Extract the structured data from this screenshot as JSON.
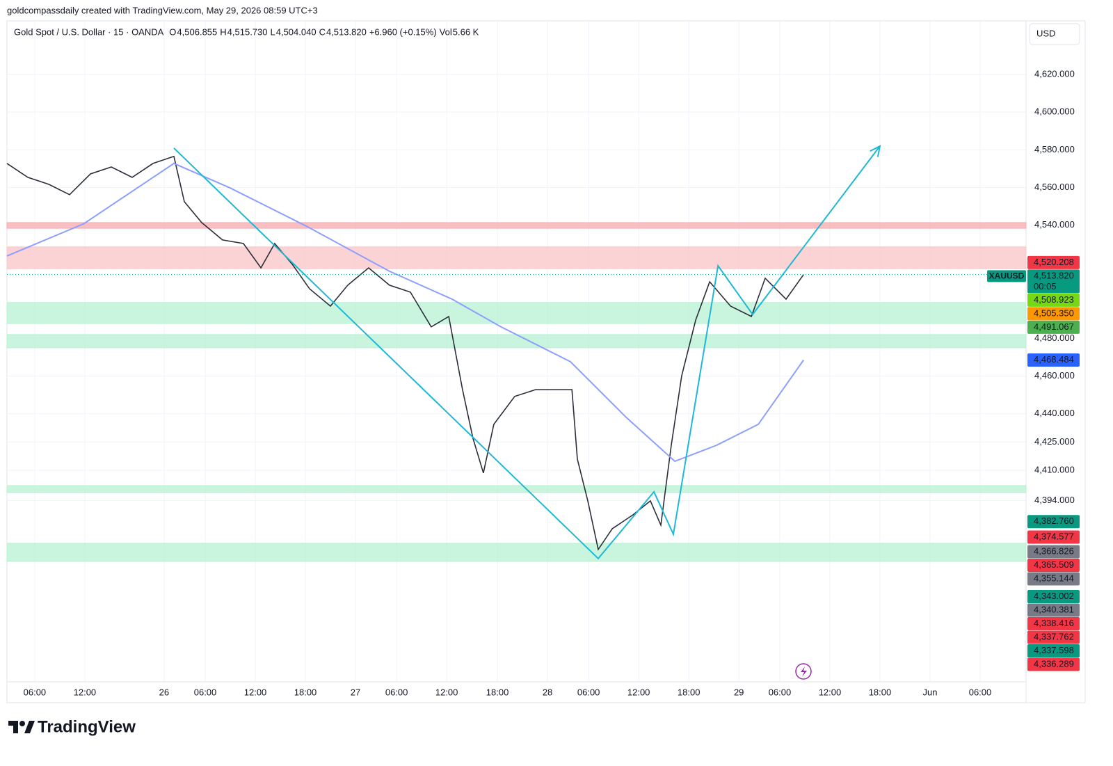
{
  "chart_data": {
    "type": "line",
    "attribution": "goldcompassdaily created with TradingView.com, May 29, 2026 08:59 UTC+3",
    "title": "Gold Spot / U.S. Dollar · 15 · OANDA",
    "ohlc": [
      {
        "name": "O",
        "text": "4,506.855"
      },
      {
        "name": "H",
        "text": "4,515.730"
      },
      {
        "name": "L",
        "text": "4,504.040"
      },
      {
        "name": "C",
        "text": "4,513.820"
      }
    ],
    "change": "+6.960 (+0.15%)",
    "volume": {
      "name": "Vol",
      "text": "5.66 K"
    },
    "currency": "USD",
    "brand": "TradingView",
    "ylim": [
      4301.5,
      4648.4
    ],
    "yticks": [
      {
        "value": 4620,
        "label": "4,620.000"
      },
      {
        "value": 4600,
        "label": "4,600.000"
      },
      {
        "value": 4580,
        "label": "4,580.000"
      },
      {
        "value": 4560,
        "label": "4,560.000"
      },
      {
        "value": 4540,
        "label": "4,540.000"
      },
      {
        "value": 4480,
        "label": "4,480.000"
      },
      {
        "value": 4460,
        "label": "4,460.000"
      },
      {
        "value": 4440,
        "label": "4,440.000"
      },
      {
        "value": 4425,
        "label": "4,425.000"
      },
      {
        "value": 4410,
        "label": "4,410.000"
      },
      {
        "value": 4394,
        "label": "4,394.000"
      }
    ],
    "xlim": [
      0,
      488.3
    ],
    "xticks": [
      {
        "value": 13.3,
        "label": "06:00"
      },
      {
        "value": 37.3,
        "label": "12:00"
      },
      {
        "value": 75.3,
        "label": "26"
      },
      {
        "value": 95,
        "label": "06:00"
      },
      {
        "value": 119,
        "label": "12:00"
      },
      {
        "value": 143,
        "label": "18:00"
      },
      {
        "value": 167,
        "label": "27"
      },
      {
        "value": 186.7,
        "label": "06:00"
      },
      {
        "value": 210.7,
        "label": "12:00"
      },
      {
        "value": 235,
        "label": "18:00"
      },
      {
        "value": 259,
        "label": "28"
      },
      {
        "value": 278.7,
        "label": "06:00"
      },
      {
        "value": 302.7,
        "label": "12:00"
      },
      {
        "value": 326.7,
        "label": "18:00"
      },
      {
        "value": 350.7,
        "label": "29"
      },
      {
        "value": 370.3,
        "label": "06:00"
      },
      {
        "value": 394.3,
        "label": "12:00"
      },
      {
        "value": 418.3,
        "label": "18:00"
      },
      {
        "value": 442.3,
        "label": "Jun"
      },
      {
        "value": 466.3,
        "label": "06:00"
      }
    ],
    "grid": true,
    "series": [
      {
        "color": "#2a2e39",
        "x": [
          0,
          10,
          20,
          30,
          40,
          50,
          60,
          70,
          80,
          85,
          93.3,
          103.3,
          113.3,
          121.7,
          128.3,
          136.7,
          145,
          155,
          163.3,
          173.3,
          183.3,
          193.3,
          203.3,
          211.7,
          218.3,
          223.3,
          228.3,
          233.3,
          243.3,
          253.3,
          263.3,
          270.7,
          273.3,
          278.3,
          283.3,
          290,
          300,
          308.3,
          313.3,
          318.3,
          323.3,
          330,
          336.7,
          346.7,
          356.7,
          363.3,
          373.3,
          381.7
        ],
        "values": [
          4572.8,
          4565.4,
          4561.7,
          4556.2,
          4567.2,
          4570.9,
          4565.4,
          4572.8,
          4576.5,
          4552.5,
          4541.4,
          4532.2,
          4530.3,
          4517.4,
          4530.3,
          4519.3,
          4506.3,
          4497.1,
          4508.2,
          4517.4,
          4508.2,
          4504.5,
          4486.1,
          4491.6,
          4452.8,
          4427.0,
          4408.6,
          4434.4,
          4449.2,
          4452.8,
          4452.8,
          4452.8,
          4415.9,
          4393.8,
          4368.0,
          4379.0,
          4386.4,
          4393.8,
          4380.9,
          4423.3,
          4460.2,
          4489.7,
          4510.0,
          4497.1,
          4491.6,
          4511.9,
          4500.8,
          4513.8
        ]
      },
      {
        "color": "#8c9eff",
        "x": [
          0,
          36.7,
          80,
          106.7,
          143.3,
          183.3,
          213.3,
          236.7,
          270,
          296.7,
          320,
          340,
          360,
          381.7
        ],
        "values": [
          4523.7,
          4540.7,
          4572.8,
          4559.9,
          4539.6,
          4515.6,
          4500.8,
          4486.1,
          4467.6,
          4438.1,
          4414.8,
          4423.3,
          4434.4,
          4468.5
        ]
      }
    ],
    "zones": [
      {
        "from": 4538.4,
        "to": 4541.4,
        "color": "#f7a9ad"
      },
      {
        "from": 4517.0,
        "to": 4528.5,
        "color": "#f9c4c7"
      },
      {
        "from": 4487.9,
        "to": 4499.0,
        "color": "#b7f0d2"
      },
      {
        "from": 4475.0,
        "to": 4482.0,
        "color": "#b7f0d2"
      },
      {
        "from": 4398.2,
        "to": 4401.9,
        "color": "#b7f0d2"
      },
      {
        "from": 4361.7,
        "to": 4371.3,
        "color": "#b7f0d2"
      }
    ],
    "drawing": {
      "color": "#1fb8d4",
      "x": [
        80,
        283.3,
        310,
        319.3,
        340.7,
        357.3,
        418.3
      ],
      "values": [
        4580.9,
        4363.2,
        4398.6,
        4376.1,
        4518.5,
        4492.7,
        4582.0
      ]
    },
    "price_labels": [
      {
        "value": 4520.208,
        "label": "4,520.208",
        "color": "#f23645"
      },
      {
        "value": 4513.82,
        "label": "4,513.820",
        "color": "#089981",
        "tag": "XAUUSD",
        "countdown": "00:05"
      },
      {
        "value": 4508.923,
        "label": "4,508.923",
        "color": "#76d813"
      },
      {
        "value": 4505.35,
        "label": "4,505.350",
        "color": "#ff9800"
      },
      {
        "value": 4491.067,
        "label": "4,491.067",
        "color": "#4caf50"
      },
      {
        "value": 4468.484,
        "label": "4,468.484",
        "color": "#2962ff"
      },
      {
        "value": 4382.76,
        "label": "4,382.760",
        "color": "#089981"
      },
      {
        "value": 4374.577,
        "label": "4,374.577",
        "color": "#f23645"
      },
      {
        "value": 4366.826,
        "label": "4,366.826",
        "color": "#787b86"
      },
      {
        "value": 4365.509,
        "label": "4,365.509",
        "color": "#f23645"
      },
      {
        "value": 4355.144,
        "label": "4,355.144",
        "color": "#787b86"
      },
      {
        "value": 4343.002,
        "label": "4,343.002",
        "color": "#089981"
      },
      {
        "value": 4340.381,
        "label": "4,340.381",
        "color": "#787b86"
      },
      {
        "value": 4338.416,
        "label": "4,338.416",
        "color": "#f23645"
      },
      {
        "value": 4337.762,
        "label": "4,337.762",
        "color": "#f23645"
      },
      {
        "value": 4337.598,
        "label": "4,337.598",
        "color": "#089981"
      },
      {
        "value": 4336.289,
        "label": "4,336.289",
        "color": "#f23645"
      }
    ]
  }
}
